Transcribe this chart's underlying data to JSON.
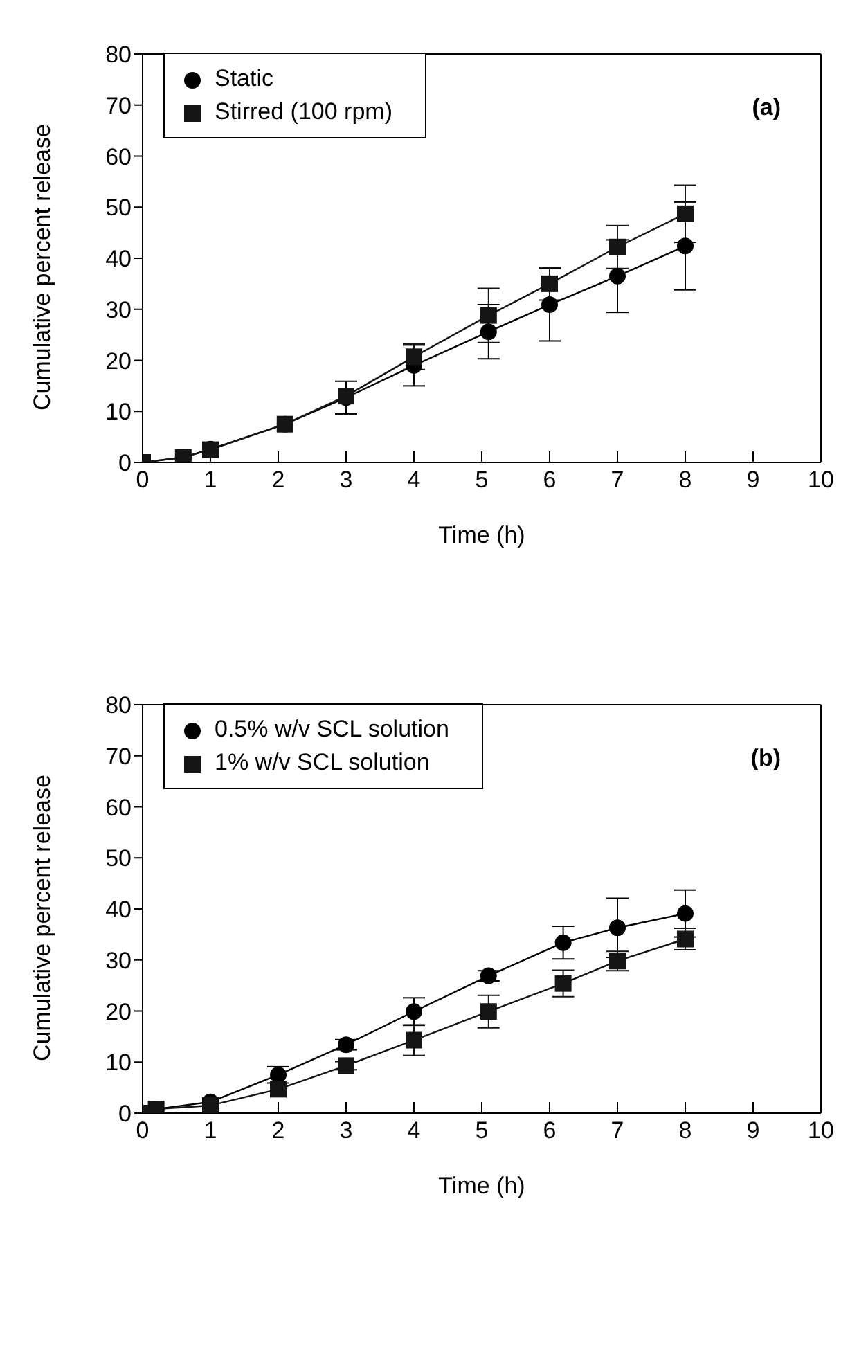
{
  "chart_data": [
    {
      "type": "line",
      "xlabel": "Time (h)",
      "ylabel": "Cumulative percent release",
      "annotations": [
        "(a)"
      ],
      "xlim": [
        0,
        10
      ],
      "xticks": [
        0,
        1,
        2,
        3,
        4,
        5,
        6,
        7,
        8,
        9,
        10
      ],
      "ylim": [
        0,
        80
      ],
      "yticks": [
        0,
        10,
        20,
        30,
        40,
        50,
        60,
        70,
        80
      ],
      "legend": "top left",
      "series": [
        {
          "name": "Static",
          "color": "#000000",
          "marker": "circle",
          "x": [
            0,
            0.6,
            1,
            2.1,
            3,
            4,
            5.1,
            6,
            7,
            8
          ],
          "values": [
            0,
            1,
            2.6,
            7.5,
            12.7,
            19,
            25.6,
            30.9,
            36.5,
            42.4
          ],
          "errors": [
            null,
            null,
            null,
            null,
            3.2,
            4,
            5.3,
            7.1,
            7.1,
            8.6
          ]
        },
        {
          "name": "Stirred (100 rpm)",
          "color": "#151515",
          "marker": "square",
          "x": [
            0,
            0.6,
            1,
            2.1,
            3,
            4,
            5.1,
            6,
            7,
            8
          ],
          "values": [
            0,
            1,
            2.5,
            7.5,
            13,
            20.7,
            28.8,
            35,
            42.2,
            48.7
          ],
          "errors": [
            null,
            null,
            null,
            null,
            null,
            2.5,
            5.3,
            3.2,
            4.2,
            5.6
          ]
        }
      ]
    },
    {
      "type": "line",
      "xlabel": "Time (h)",
      "ylabel": "Cumulative percent release",
      "annotations": [
        "(b)"
      ],
      "xlim": [
        0,
        10
      ],
      "xticks": [
        0,
        1,
        2,
        3,
        4,
        5,
        6,
        7,
        8,
        9,
        10
      ],
      "ylim": [
        0,
        80
      ],
      "yticks": [
        0,
        10,
        20,
        30,
        40,
        50,
        60,
        70,
        80
      ],
      "legend": "top left",
      "series": [
        {
          "name": "0.5% w/v SCL solution",
          "color": "#000000",
          "marker": "circle",
          "x": [
            0,
            0.2,
            1,
            2,
            3,
            4,
            5.1,
            6.2,
            7,
            8
          ],
          "values": [
            0,
            0.8,
            2.2,
            7.5,
            13.4,
            19.9,
            26.9,
            33.4,
            36.3,
            39.1
          ],
          "errors": [
            null,
            null,
            null,
            1.6,
            1,
            2.7,
            1,
            3.2,
            5.8,
            4.6
          ]
        },
        {
          "name": "1% w/v SCL solution",
          "color": "#151515",
          "marker": "square",
          "x": [
            0,
            0.2,
            1,
            2,
            3,
            4,
            5.1,
            6.2,
            7,
            8
          ],
          "values": [
            0,
            0.8,
            1.5,
            4.7,
            9.3,
            14.3,
            19.9,
            25.4,
            29.8,
            34.1
          ],
          "errors": [
            null,
            null,
            null,
            null,
            0.8,
            3,
            3.2,
            2.6,
            1.9,
            2.1
          ]
        }
      ]
    }
  ]
}
